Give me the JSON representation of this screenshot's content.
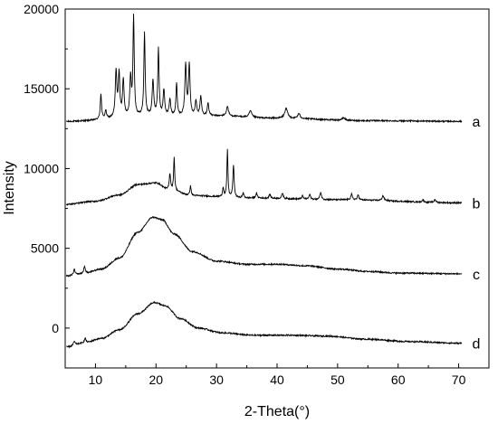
{
  "chart_data": {
    "type": "line",
    "title": "",
    "xlabel": "2-Theta(°)",
    "ylabel": "Intensity",
    "xlim": [
      5,
      75
    ],
    "ylim": [
      -2500,
      20000
    ],
    "x_ticks": [
      10,
      20,
      30,
      40,
      50,
      60,
      70
    ],
    "x_tick_labels": [
      "10",
      "20",
      "30",
      "40",
      "50",
      "60",
      "70"
    ],
    "y_ticks": [
      0,
      5000,
      10000,
      15000,
      20000
    ],
    "y_tick_labels": [
      "0",
      "5000",
      "10000",
      "15000",
      "20000"
    ],
    "grid": false,
    "legend": "none",
    "series": [
      {
        "name": "a",
        "color": "#000000",
        "baseline": [
          [
            5,
            12950
          ],
          [
            20,
            13300
          ],
          [
            30,
            13300
          ],
          [
            40,
            13150
          ],
          [
            55,
            13000
          ],
          [
            70.5,
            12960
          ]
        ],
        "peaks": [
          [
            10.9,
            1600,
            0.25
          ],
          [
            11.7,
            500,
            0.3
          ],
          [
            13.4,
            2900,
            0.3
          ],
          [
            13.9,
            2700,
            0.3
          ],
          [
            14.6,
            2300,
            0.3
          ],
          [
            16.3,
            6200,
            0.25
          ],
          [
            15.8,
            2400,
            0.3
          ],
          [
            18.1,
            5200,
            0.25
          ],
          [
            19.5,
            2200,
            0.3
          ],
          [
            20.4,
            4200,
            0.25
          ],
          [
            21.3,
            1600,
            0.3
          ],
          [
            22.3,
            1000,
            0.3
          ],
          [
            23.4,
            2000,
            0.25
          ],
          [
            24.9,
            3200,
            0.3
          ],
          [
            25.5,
            3200,
            0.3
          ],
          [
            26.6,
            900,
            0.3
          ],
          [
            27.4,
            1200,
            0.3
          ],
          [
            28.6,
            800,
            0.3
          ],
          [
            31.8,
            600,
            0.4
          ],
          [
            35.6,
            400,
            0.5
          ],
          [
            41.5,
            600,
            0.6
          ],
          [
            43.6,
            300,
            0.5
          ],
          [
            51,
            150,
            0.6
          ]
        ]
      },
      {
        "name": "b",
        "color": "#000000",
        "baseline": [
          [
            5,
            7750
          ],
          [
            10,
            7950
          ],
          [
            14,
            8350
          ],
          [
            17,
            9000
          ],
          [
            20,
            9100
          ],
          [
            22,
            8700
          ],
          [
            26,
            8300
          ],
          [
            35,
            8150
          ],
          [
            50,
            8050
          ],
          [
            70.5,
            7850
          ]
        ],
        "peaks": [
          [
            22.3,
            1000,
            0.25
          ],
          [
            23,
            2100,
            0.2
          ],
          [
            25.7,
            600,
            0.25
          ],
          [
            31.1,
            600,
            0.25
          ],
          [
            31.8,
            3000,
            0.2
          ],
          [
            32.8,
            2000,
            0.25
          ],
          [
            34.4,
            300,
            0.3
          ],
          [
            36.6,
            300,
            0.3
          ],
          [
            38.8,
            250,
            0.3
          ],
          [
            40.9,
            350,
            0.3
          ],
          [
            44.2,
            200,
            0.3
          ],
          [
            45.4,
            300,
            0.3
          ],
          [
            47.2,
            450,
            0.3
          ],
          [
            52.3,
            350,
            0.3
          ],
          [
            53.4,
            300,
            0.3
          ],
          [
            57.5,
            300,
            0.4
          ],
          [
            64.1,
            150,
            0.3
          ],
          [
            66.1,
            200,
            0.3
          ]
        ]
      },
      {
        "name": "c",
        "color": "#000000",
        "baseline": [
          [
            5,
            3250
          ],
          [
            8,
            3400
          ],
          [
            11,
            3700
          ],
          [
            14,
            4400
          ],
          [
            17,
            6000
          ],
          [
            19.5,
            6950
          ],
          [
            21,
            6800
          ],
          [
            23,
            5900
          ],
          [
            26,
            4800
          ],
          [
            30,
            4200
          ],
          [
            35,
            4000
          ],
          [
            40,
            4000
          ],
          [
            45,
            3900
          ],
          [
            50,
            3700
          ],
          [
            55,
            3550
          ],
          [
            60,
            3450
          ],
          [
            70.5,
            3400
          ]
        ],
        "peaks": [
          [
            6.5,
            350,
            0.3
          ],
          [
            8.2,
            450,
            0.35
          ]
        ]
      },
      {
        "name": "d",
        "color": "#000000",
        "baseline": [
          [
            5,
            -1200
          ],
          [
            8,
            -950
          ],
          [
            11,
            -650
          ],
          [
            14,
            -100
          ],
          [
            17,
            900
          ],
          [
            19.8,
            1600
          ],
          [
            21.5,
            1400
          ],
          [
            24,
            600
          ],
          [
            27,
            0
          ],
          [
            31,
            -300
          ],
          [
            36,
            -450
          ],
          [
            42,
            -450
          ],
          [
            48,
            -500
          ],
          [
            55,
            -700
          ],
          [
            62,
            -850
          ],
          [
            70.5,
            -950
          ]
        ],
        "peaks": [
          [
            6.5,
            250,
            0.3
          ],
          [
            8.3,
            300,
            0.35
          ]
        ]
      }
    ]
  }
}
